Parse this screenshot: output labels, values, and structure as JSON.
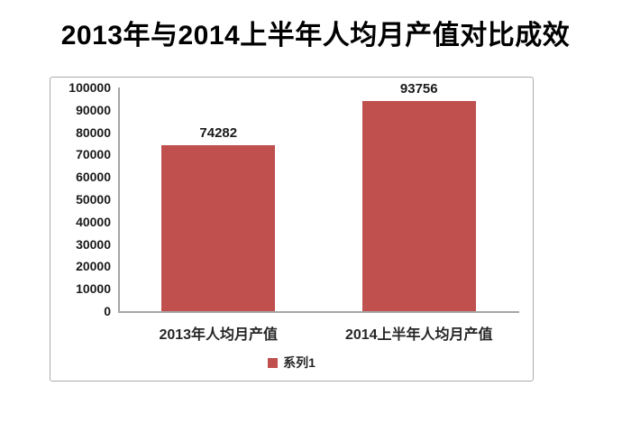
{
  "chart_data": {
    "type": "bar",
    "title": "2013年与2014上半年人均月产值对比成效",
    "categories": [
      "2013年人均月产值",
      "2014上半年人均月产值"
    ],
    "series": [
      {
        "name": "系列1",
        "values": [
          74282,
          93756
        ]
      }
    ],
    "data_labels": [
      "74282",
      "93756"
    ],
    "xlabel": "",
    "ylabel": "",
    "ylim": [
      0,
      100000
    ],
    "ytick_step": 10000,
    "yticks": [
      0,
      10000,
      20000,
      30000,
      40000,
      50000,
      60000,
      70000,
      80000,
      90000,
      100000
    ],
    "grid": false,
    "legend_position": "bottom",
    "bar_color": "#c0504d"
  },
  "colors": {
    "bar": "#c0504d",
    "axis_line": "#a6a6a6",
    "frame_border": "#ababab",
    "text": "#1a1a1a"
  }
}
